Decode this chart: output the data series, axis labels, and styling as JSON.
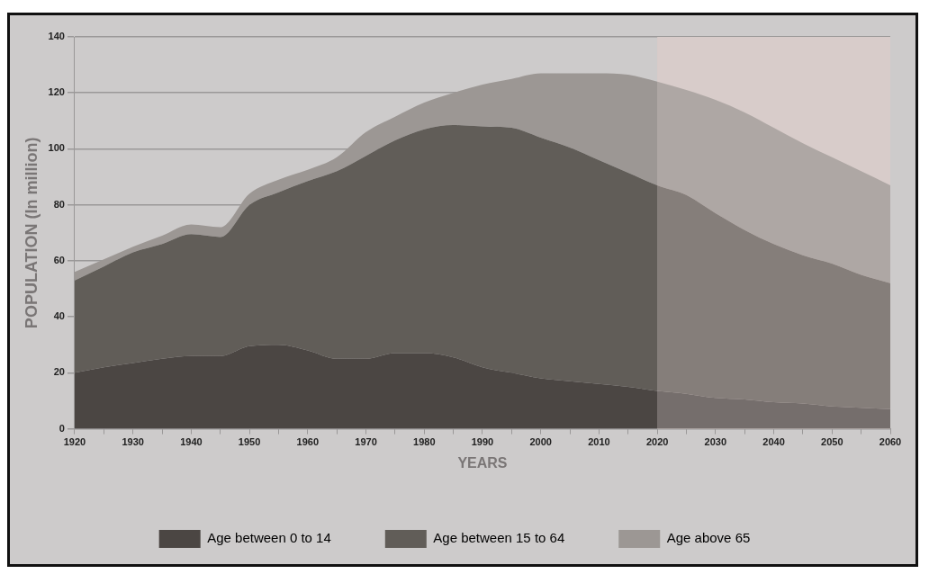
{
  "chart_data": {
    "type": "area",
    "stacked": true,
    "xlabel": "YEARS",
    "ylabel": "POPULATION (In million)",
    "x": [
      1920,
      1925,
      1930,
      1935,
      1940,
      1945,
      1950,
      1955,
      1960,
      1965,
      1970,
      1975,
      1980,
      1985,
      1990,
      1995,
      2000,
      2005,
      2010,
      2015,
      2020,
      2025,
      2030,
      2035,
      2040,
      2045,
      2050,
      2055,
      2060
    ],
    "series": [
      {
        "name": "Age between 0 to 14",
        "color": "#4b4643",
        "values": [
          20,
          22,
          23.5,
          25,
          26,
          26,
          29.5,
          30,
          28,
          25,
          25,
          27,
          27,
          25.5,
          22,
          20,
          18,
          17,
          16,
          15,
          13.5,
          12.5,
          11,
          10.5,
          9.5,
          9,
          8,
          7.5,
          7
        ]
      },
      {
        "name": "Age between 15 to 64",
        "color": "#615d58",
        "values": [
          33,
          36,
          39.5,
          41,
          43.5,
          42.5,
          50.5,
          54.5,
          60.5,
          67,
          72.5,
          76,
          80,
          83,
          86,
          87.5,
          86,
          83.5,
          80,
          76.5,
          73.5,
          71,
          66,
          60.5,
          56.5,
          53,
          51,
          47.5,
          45
        ]
      },
      {
        "name": "Age above 65",
        "color": "#9c9794",
        "values": [
          3,
          2.5,
          2,
          3,
          3.5,
          3.5,
          4,
          4.5,
          4,
          5,
          8.5,
          8.5,
          9.5,
          11.5,
          15,
          17.5,
          23,
          26.5,
          31,
          35,
          37,
          37.5,
          40.5,
          42,
          41.5,
          40,
          38,
          37,
          35
        ]
      }
    ],
    "bands": [
      {
        "axis": "x",
        "from": 2020,
        "to": 2060,
        "color": "#d8ccca"
      }
    ],
    "xlim": [
      1920,
      2060
    ],
    "xticks": [
      1920,
      {
        "value": 1925,
        "label": null
      },
      1930,
      {
        "value": 1935,
        "label": null
      },
      1940,
      {
        "value": 1945,
        "label": null
      },
      1950,
      {
        "value": 1955,
        "label": null
      },
      1960,
      {
        "value": 1965,
        "label": null
      },
      1970,
      {
        "value": 1975,
        "label": null
      },
      1980,
      {
        "value": 1985,
        "label": null
      },
      1990,
      {
        "value": 1995,
        "label": null
      },
      2000,
      {
        "value": 2005,
        "label": null
      },
      2010,
      {
        "value": 2015,
        "label": null
      },
      2020,
      {
        "value": 2025,
        "label": null
      },
      2030,
      {
        "value": 2035,
        "label": null
      },
      2040,
      {
        "value": 2045,
        "label": null
      },
      2050,
      {
        "value": 2055,
        "label": null
      },
      2060
    ],
    "ylim": [
      0,
      140
    ],
    "yticks": [
      0,
      20,
      40,
      60,
      80,
      100,
      120,
      140
    ],
    "grid": "y",
    "legend": "bottom",
    "marker": "none"
  }
}
